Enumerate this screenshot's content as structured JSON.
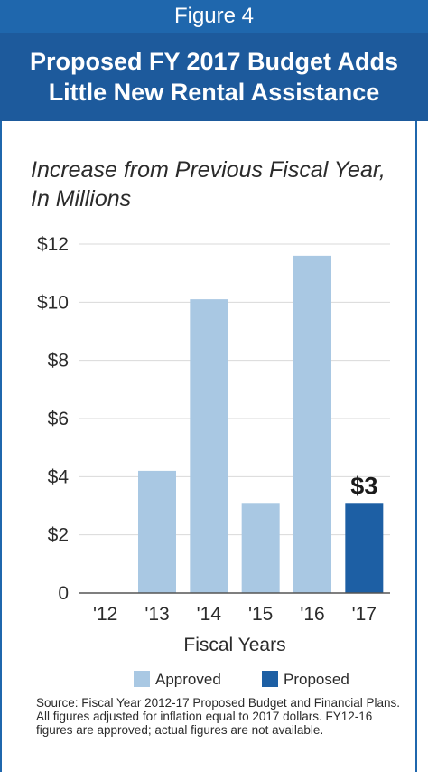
{
  "header": {
    "figure_label": "Figure 4",
    "title_line1": "Proposed FY 2017 Budget Adds",
    "title_line2": "Little New Rental Assistance"
  },
  "source_text": "Source: Fiscal Year 2012-17 Proposed Budget and Financial Plans. All figures adjusted for inflation equal to 2017 dollars. FY12-16 figures are approved; actual figures are not available.",
  "colors": {
    "approved": "#a9c8e3",
    "proposed": "#1d5fa4",
    "header_top": "#1f67ad",
    "header_bottom": "#1d5a9c"
  },
  "chart_data": {
    "type": "bar",
    "title": "Increase from Previous Fiscal Year, In Millions",
    "xlabel": "Fiscal Years",
    "ylabel": "",
    "ylim": [
      0,
      12
    ],
    "y_ticks": [
      "0",
      "$2",
      "$4",
      "$6",
      "$8",
      "$10",
      "$12"
    ],
    "y_tick_values": [
      0,
      2,
      4,
      6,
      8,
      10,
      12
    ],
    "grid": true,
    "legend_position": "bottom",
    "categories": [
      "'12",
      "'13",
      "'14",
      "'15",
      "'16",
      "'17"
    ],
    "values": [
      0,
      4.2,
      10.1,
      3.1,
      11.6,
      3.1
    ],
    "status": [
      "Approved",
      "Approved",
      "Approved",
      "Approved",
      "Approved",
      "Proposed"
    ],
    "legend": [
      {
        "name": "Approved",
        "color": "#a9c8e3"
      },
      {
        "name": "Proposed",
        "color": "#1d5fa4"
      }
    ],
    "annotations": [
      {
        "category": "'17",
        "text": "$3"
      }
    ]
  }
}
